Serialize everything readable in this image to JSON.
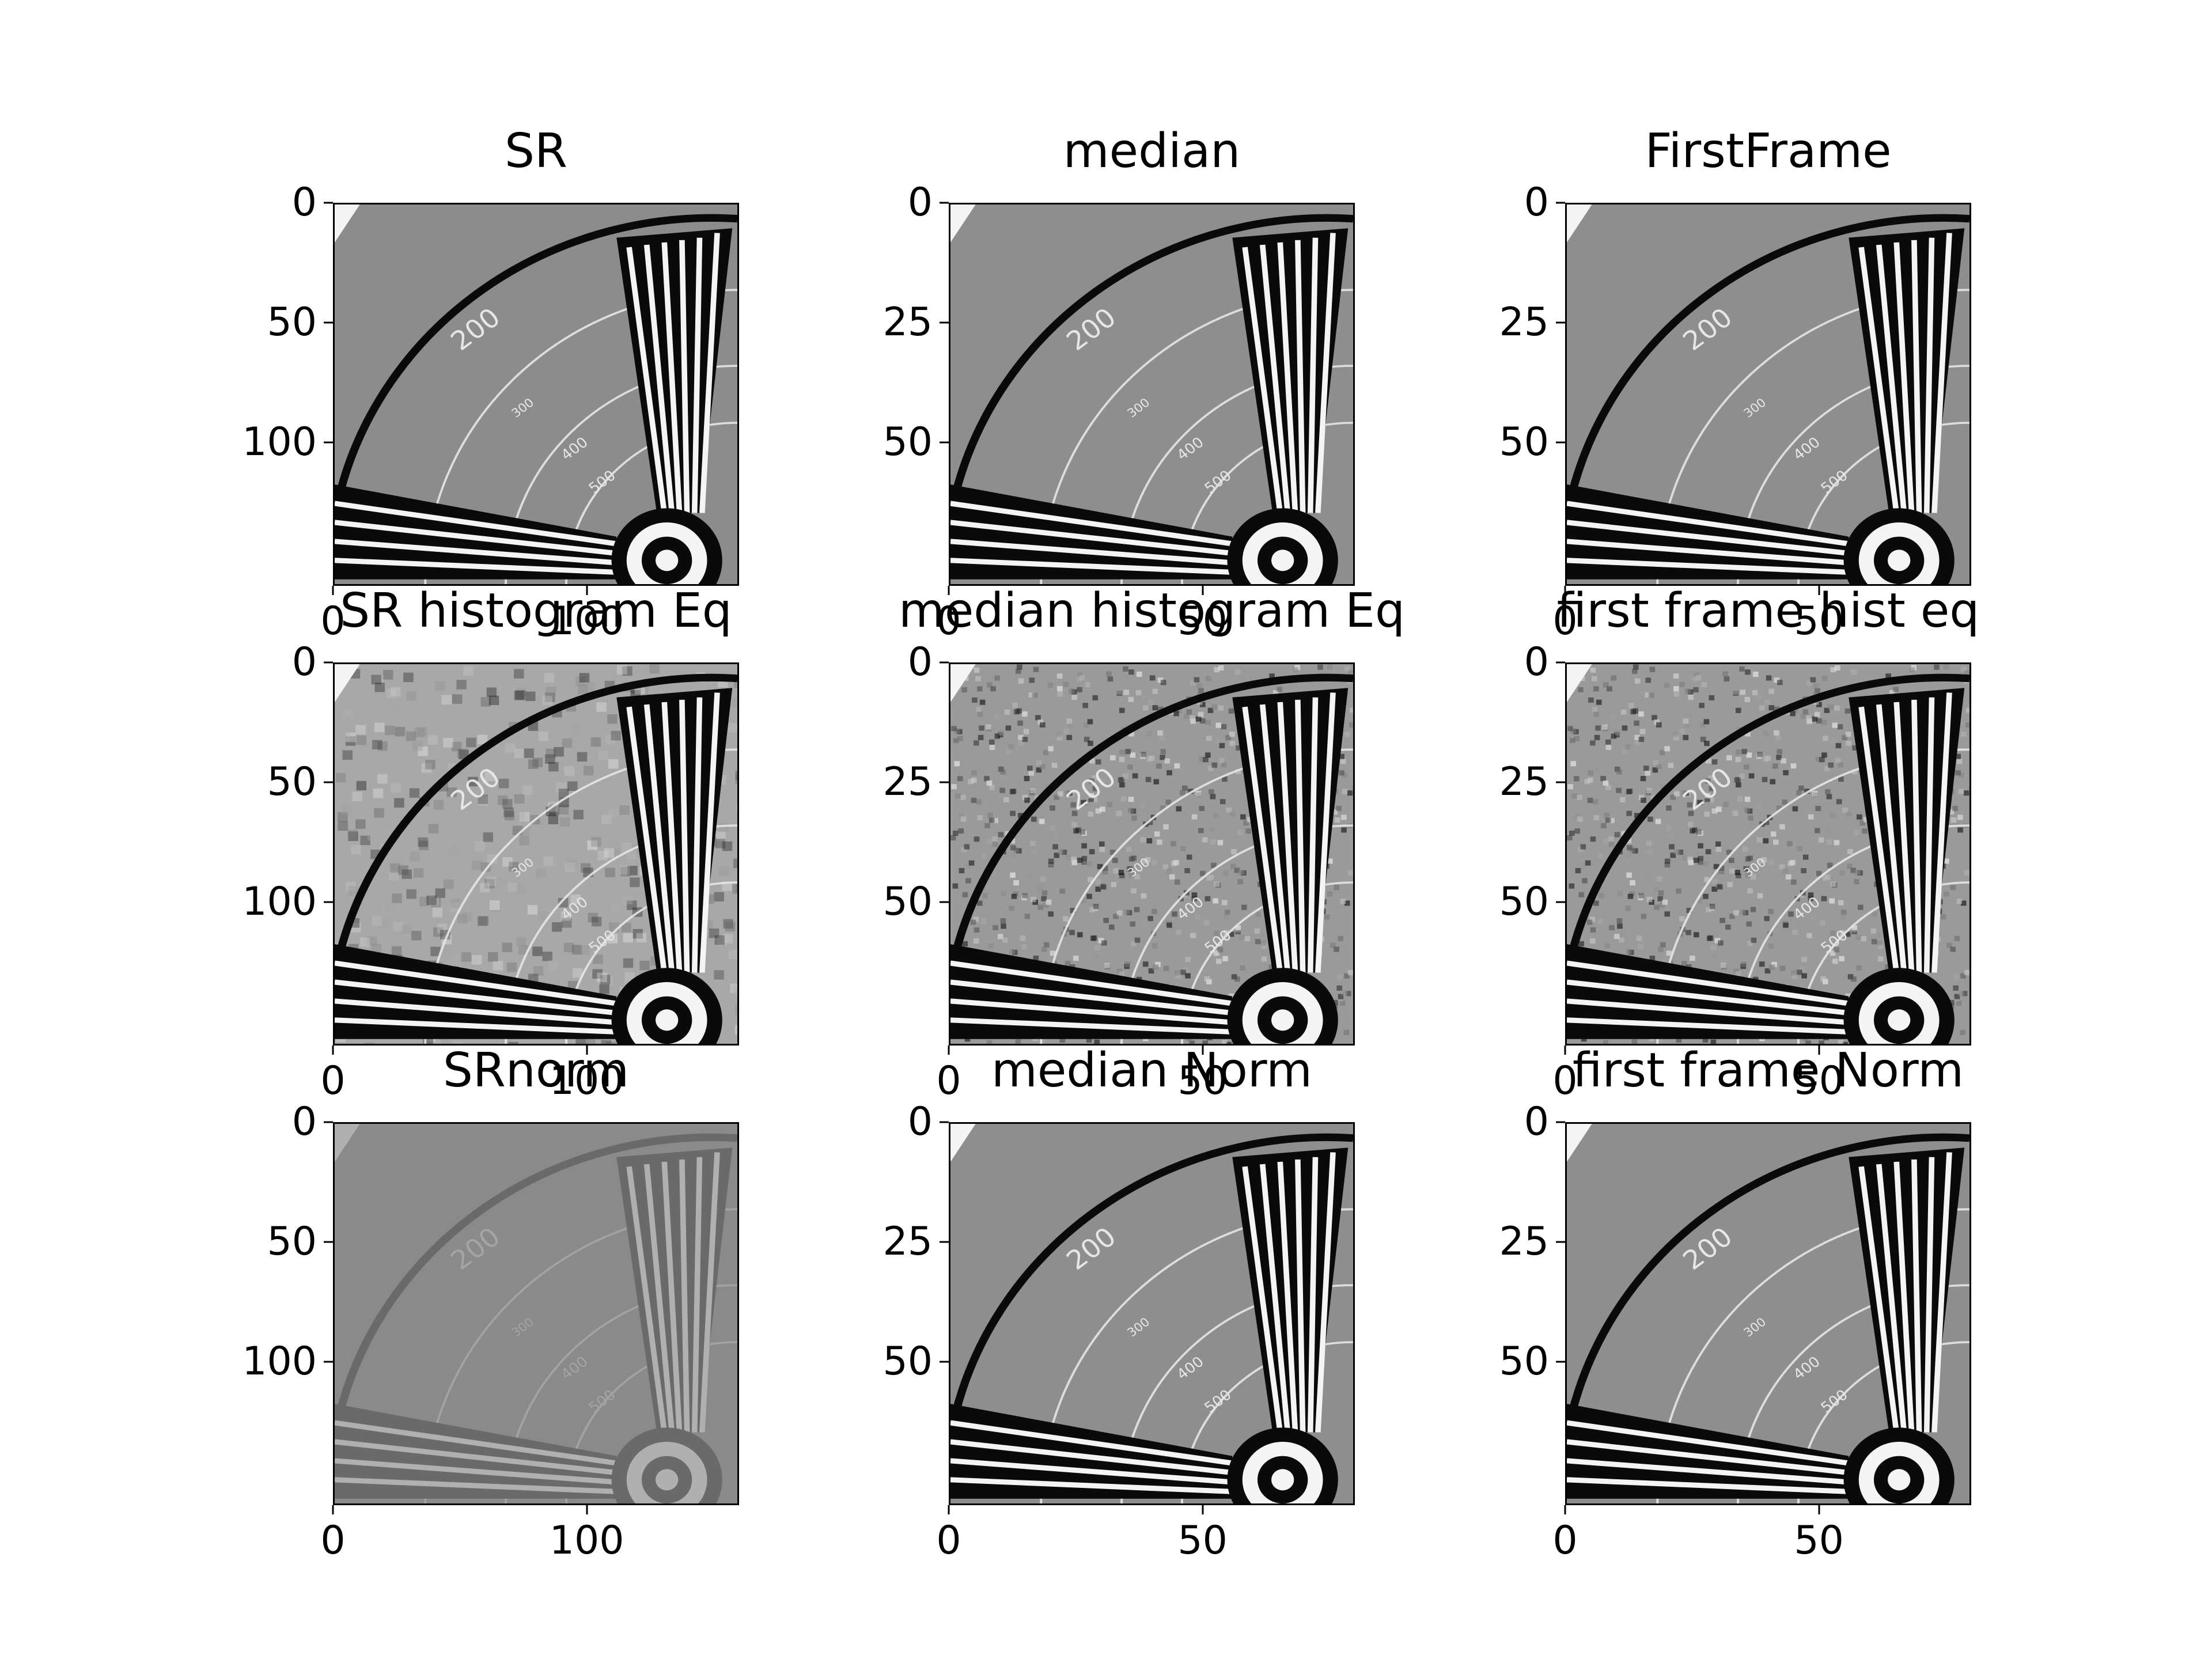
{
  "panels": [
    {
      "title": "SR",
      "style": "normal",
      "xticks": [
        "0",
        "100"
      ],
      "xtick_vals": [
        0,
        100
      ],
      "yticks": [
        "0",
        "50",
        "100"
      ],
      "ytick_vals": [
        0,
        50,
        100
      ],
      "size": 160
    },
    {
      "title": "median",
      "style": "soft",
      "xticks": [
        "0",
        "50"
      ],
      "xtick_vals": [
        0,
        50
      ],
      "yticks": [
        "0",
        "25",
        "50"
      ],
      "ytick_vals": [
        0,
        25,
        50
      ],
      "size": 80
    },
    {
      "title": "FirstFrame",
      "style": "soft",
      "xticks": [
        "0",
        "50"
      ],
      "xtick_vals": [
        0,
        50
      ],
      "yticks": [
        "0",
        "25",
        "50"
      ],
      "ytick_vals": [
        0,
        25,
        50
      ],
      "size": 80
    },
    {
      "title": "SR histogram Eq",
      "style": "eq-hard",
      "xticks": [
        "0",
        "100"
      ],
      "xtick_vals": [
        0,
        100
      ],
      "yticks": [
        "0",
        "50",
        "100"
      ],
      "ytick_vals": [
        0,
        50,
        100
      ],
      "size": 160
    },
    {
      "title": "median histogram Eq",
      "style": "eq",
      "xticks": [
        "0",
        "50"
      ],
      "xtick_vals": [
        0,
        50
      ],
      "yticks": [
        "0",
        "25",
        "50"
      ],
      "ytick_vals": [
        0,
        25,
        50
      ],
      "size": 80
    },
    {
      "title": "first frame hist eq",
      "style": "eq",
      "xticks": [
        "0",
        "50"
      ],
      "xtick_vals": [
        0,
        50
      ],
      "yticks": [
        "0",
        "25",
        "50"
      ],
      "ytick_vals": [
        0,
        25,
        50
      ],
      "size": 80
    },
    {
      "title": "SRnorm",
      "style": "faded",
      "xticks": [
        "0",
        "100"
      ],
      "xtick_vals": [
        0,
        100
      ],
      "yticks": [
        "0",
        "50",
        "100"
      ],
      "ytick_vals": [
        0,
        50,
        100
      ],
      "size": 160
    },
    {
      "title": "median Norm",
      "style": "soft",
      "xticks": [
        "0",
        "50"
      ],
      "xtick_vals": [
        0,
        50
      ],
      "yticks": [
        "0",
        "25",
        "50"
      ],
      "ytick_vals": [
        0,
        25,
        50
      ],
      "size": 80
    },
    {
      "title": "first frame Norm",
      "style": "soft",
      "xticks": [
        "0",
        "50"
      ],
      "xtick_vals": [
        0,
        50
      ],
      "yticks": [
        "0",
        "25",
        "50"
      ],
      "ytick_vals": [
        0,
        25,
        50
      ],
      "size": 80
    }
  ],
  "image_labels": {
    "ring_200": "200",
    "ring_300": "300",
    "ring_400": "400",
    "ring_500": "500"
  }
}
